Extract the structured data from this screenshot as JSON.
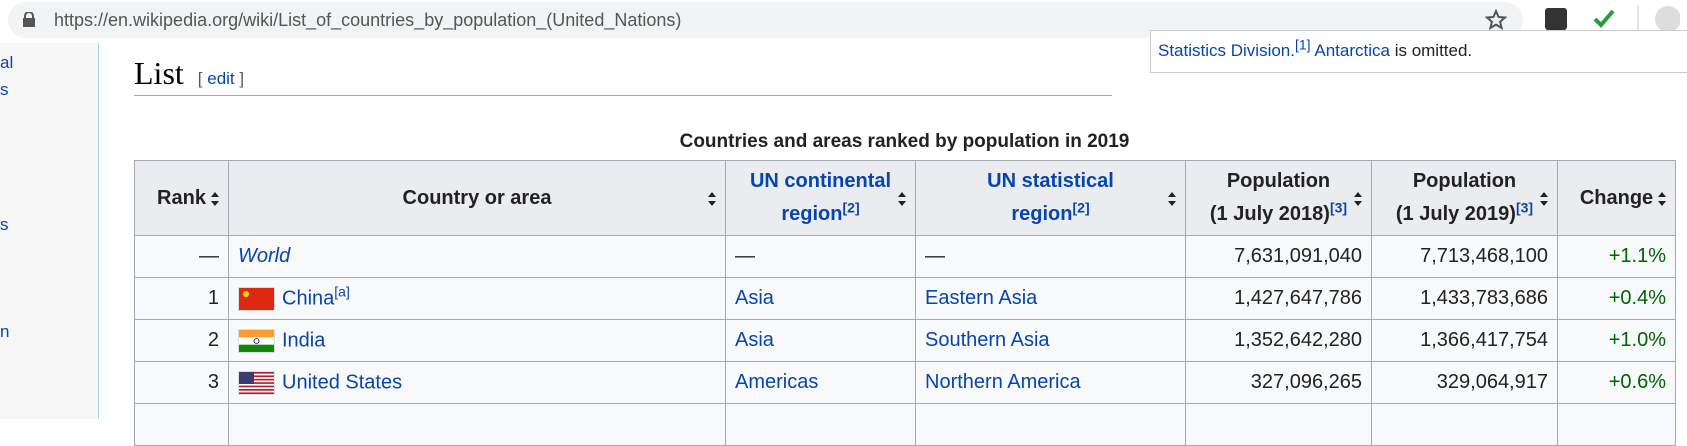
{
  "browser": {
    "url": "https://en.wikipedia.org/wiki/List_of_countries_by_population_(United_Nations)"
  },
  "sidebar": [
    "al",
    "s",
    "s",
    "n"
  ],
  "notice": {
    "text": "Statistics Division.",
    "note": "[1]",
    "link": "Antarctica",
    "rest": "is omitted."
  },
  "section": {
    "title": "List",
    "edit_open": "[",
    "edit": "edit",
    "edit_close": "]"
  },
  "table": {
    "caption": "Countries and areas ranked by population in 2019",
    "headers": [
      {
        "lines": [
          "Rank"
        ]
      },
      {
        "lines": [
          "Country or area"
        ]
      },
      {
        "lines": [
          "UN continental",
          "region"
        ],
        "note": "[2]"
      },
      {
        "lines": [
          "UN statistical",
          "region"
        ],
        "note": "[2]"
      },
      {
        "lines": [
          "Population",
          "(1 July 2018)"
        ],
        "note": "[3]"
      },
      {
        "lines": [
          "Population",
          "(1 July 2019)"
        ],
        "note": "[3]"
      },
      {
        "lines": [
          "Change"
        ]
      }
    ],
    "rows": [
      {
        "rank": "—",
        "country": "World",
        "region": "—",
        "subregion": "—",
        "pop2018": "7,631,091,040",
        "pop2019": "7,713,468,100",
        "change": "+1.1%"
      },
      {
        "rank": "1",
        "country": "China",
        "note": "[a]",
        "region": "Asia",
        "subregion": "Eastern Asia",
        "pop2018": "1,427,647,786",
        "pop2019": "1,433,783,686",
        "change": "+0.4%"
      },
      {
        "rank": "2",
        "country": "India",
        "region": "Asia",
        "subregion": "Southern Asia",
        "pop2018": "1,352,642,280",
        "pop2019": "1,366,417,754",
        "change": "+1.0%"
      },
      {
        "rank": "3",
        "country": "United States",
        "region": "Americas",
        "subregion": "Northern America",
        "pop2018": "327,096,265",
        "pop2019": "329,064,917",
        "change": "+0.6%"
      }
    ]
  }
}
